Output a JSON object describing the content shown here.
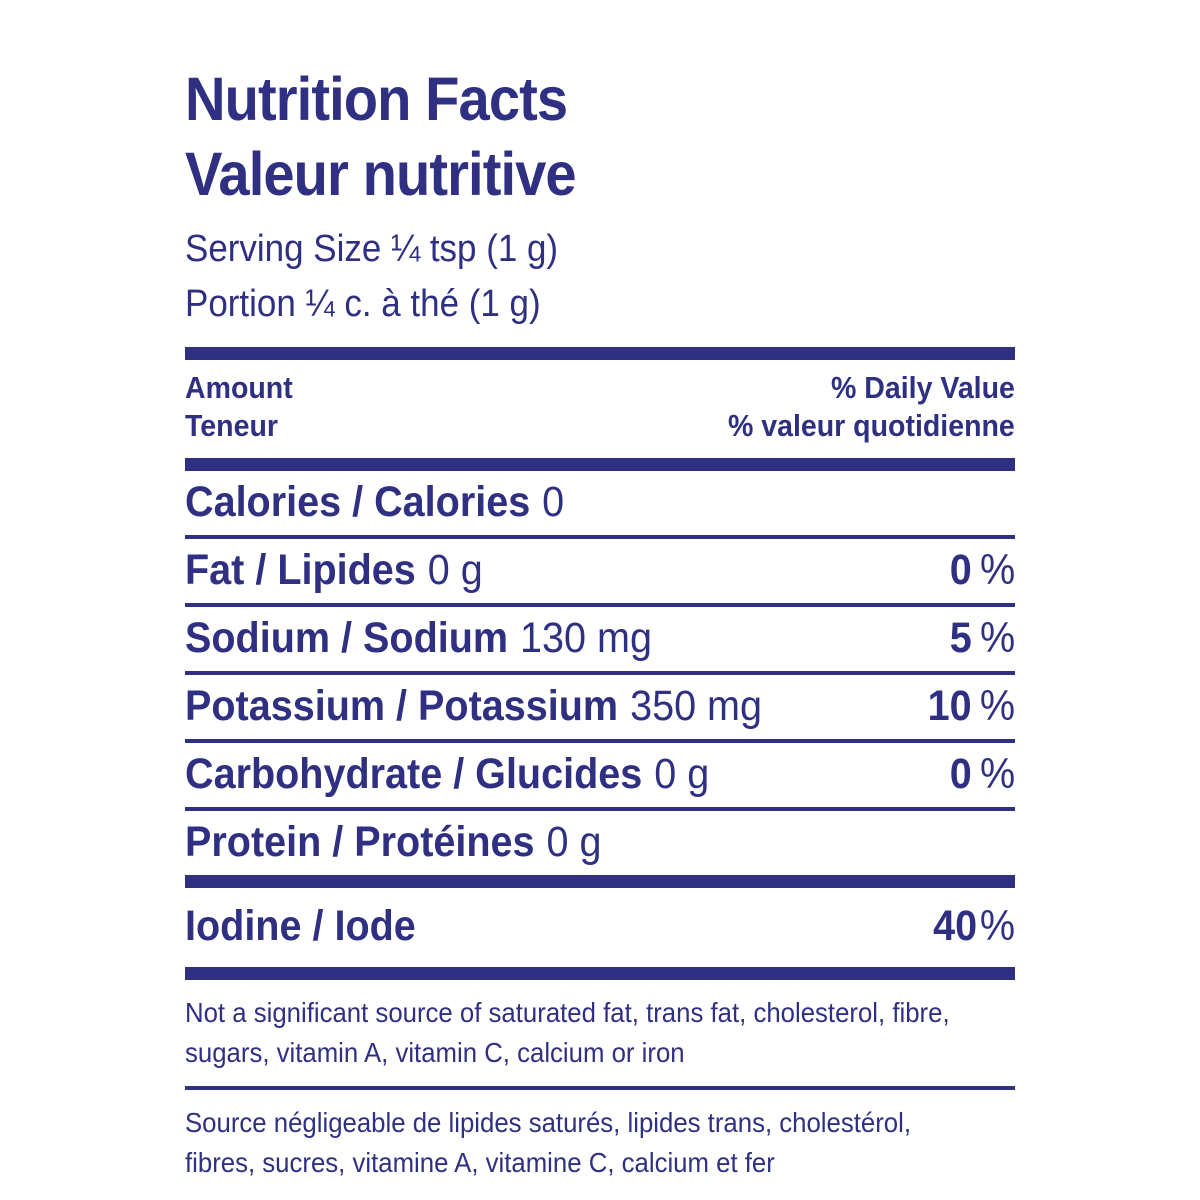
{
  "colors": {
    "ink": "#2f3082",
    "background": "#ffffff"
  },
  "label": {
    "title_en": "Nutrition Facts",
    "title_fr": "Valeur nutritive",
    "serving_size_en": "Serving Size ¼ tsp (1 g)",
    "serving_size_fr": "Portion ¼ c. à thé (1 g)",
    "header": {
      "amount_en": "Amount",
      "amount_fr": "Teneur",
      "daily_value_en": "% Daily Value",
      "daily_value_fr": "% valeur quotidienne"
    },
    "percent_sign": "%",
    "rows": [
      {
        "name": "Calories / Calories",
        "amount": "0",
        "daily_value": null
      },
      {
        "name": "Fat / Lipides",
        "amount": "0 g",
        "daily_value": "0"
      },
      {
        "name": "Sodium / Sodium",
        "amount": "130 mg",
        "daily_value": "5"
      },
      {
        "name": "Potassium / Potassium",
        "amount": "350 mg",
        "daily_value": "10"
      },
      {
        "name": "Carbohydrate / Glucides",
        "amount": "0 g",
        "daily_value": "0"
      },
      {
        "name": "Protein / Protéines",
        "amount": "0 g",
        "daily_value": null
      }
    ],
    "iodine_row": {
      "name": "Iodine / Iode",
      "daily_value": "40"
    },
    "footnote_en_lines": [
      "Not a significant source of saturated fat, trans fat, cholesterol, fibre,",
      "sugars, vitamin A, vitamin C, calcium or iron"
    ],
    "footnote_fr_lines": [
      "Source négligeable de lipides saturés, lipides trans, cholestérol,",
      "fibres, sucres, vitamine A, vitamine C, calcium et fer"
    ]
  }
}
